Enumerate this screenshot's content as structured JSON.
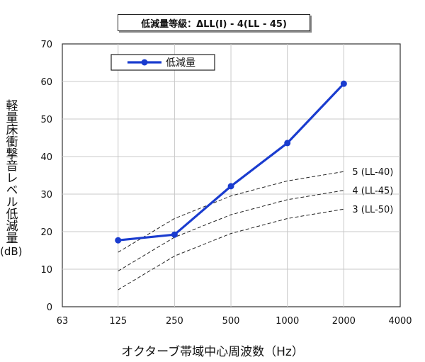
{
  "title": "低減量等級：ΔLL(Ⅰ) - 4(LL - 45)",
  "chart_data": {
    "type": "line",
    "xlabel": "オクターブ帯域中心周波数（Hz）",
    "ylabel_main": "軽量床衝撃音レベル低減量",
    "ylabel_unit": "(dB)",
    "x_ticks": [
      "63",
      "125",
      "250",
      "500",
      "1000",
      "2000",
      "4000"
    ],
    "y_ticks": [
      "0",
      "10",
      "20",
      "30",
      "40",
      "50",
      "60",
      "70"
    ],
    "ylim": [
      0,
      70
    ],
    "x_scale": "log",
    "grid": true,
    "legend_position": "top-left",
    "series": [
      {
        "name": "低減量",
        "color": "#1a3ccf",
        "x": [
          125,
          250,
          500,
          1000,
          2000
        ],
        "y": [
          17.7,
          19.2,
          32.1,
          43.6,
          59.4
        ]
      }
    ],
    "reference_curves": [
      {
        "label": "5 (LL-40)",
        "x": [
          125,
          250,
          500,
          1000,
          2000
        ],
        "y": [
          14.5,
          23.5,
          29.5,
          33.5,
          36
        ]
      },
      {
        "label": "4 (LL-45)",
        "x": [
          125,
          250,
          500,
          1000,
          2000
        ],
        "y": [
          9.5,
          18.5,
          24.5,
          28.5,
          31
        ]
      },
      {
        "label": "3 (LL-50)",
        "x": [
          125,
          250,
          500,
          1000,
          2000
        ],
        "y": [
          4.5,
          13.5,
          19.5,
          23.5,
          26
        ]
      }
    ]
  }
}
